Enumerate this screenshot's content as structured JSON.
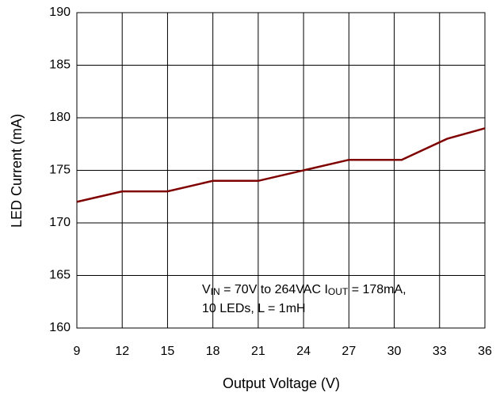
{
  "chart_data": {
    "type": "line",
    "x_label": "Output Voltage (V)",
    "y_label": "LED Current (mA)",
    "annotation": [
      [
        "V",
        "IN",
        " = 70V to 264VAC I",
        "OUT",
        " = 178mA,"
      ],
      [
        "10 LEDs, L = 1mH"
      ]
    ],
    "x": [
      9,
      12,
      15,
      18,
      21,
      24,
      27,
      30.5,
      33.5,
      36
    ],
    "series": [
      {
        "color": "#7f0000",
        "values": [
          172,
          173,
          173,
          174,
          174,
          175,
          176,
          176,
          178,
          179
        ]
      }
    ],
    "xlim": [
      9,
      36
    ],
    "xticks": [
      9,
      12,
      15,
      18,
      21,
      24,
      27,
      30,
      33,
      36
    ],
    "ylim": [
      160,
      190
    ],
    "yticks": [
      160,
      165,
      170,
      175,
      180,
      185,
      190
    ],
    "grid": true
  }
}
